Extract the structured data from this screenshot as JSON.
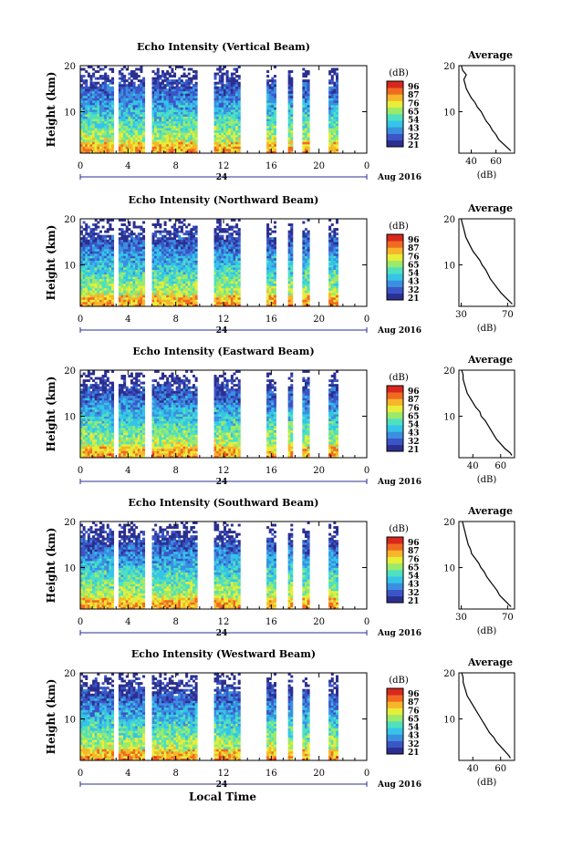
{
  "x_axis_label": "Local Time",
  "date_label": "Aug 2016",
  "day_label": "24",
  "y_label": "Height (km)",
  "x_ticks": [
    "0",
    "4",
    "8",
    "12",
    "16",
    "20",
    "0"
  ],
  "y_ticks": [
    "20",
    "10"
  ],
  "colorbar": {
    "unit": "(dB)",
    "ticks": [
      "96",
      "87",
      "76",
      "65",
      "54",
      "43",
      "32",
      "21"
    ],
    "colors": [
      "#2b2f8f",
      "#3b55c7",
      "#3a8fe0",
      "#35c4e8",
      "#4fe0c0",
      "#9bea6a",
      "#e6ee3a",
      "#f7b52a",
      "#f06a22",
      "#d8281e"
    ]
  },
  "profile": {
    "title": "Average",
    "xlabel": "(dB)"
  },
  "chart_data": [
    {
      "type": "heatmap",
      "title": "Echo Intensity (Vertical Beam)",
      "xlabel": "Local Time",
      "ylabel": "Height (km)",
      "xlim": [
        0,
        24
      ],
      "ylim": [
        1,
        20
      ],
      "data_gaps_hours": [
        [
          2.9,
          3.3
        ],
        [
          5.4,
          6.0
        ],
        [
          9.8,
          11.2
        ],
        [
          13.4,
          15.6
        ],
        [
          16.4,
          17.5
        ],
        [
          17.9,
          18.7
        ],
        [
          19.2,
          20.9
        ],
        [
          21.6,
          24
        ]
      ],
      "colorbar_ticks": [
        96,
        87,
        76,
        65,
        54,
        43,
        32,
        21
      ],
      "profile": {
        "type": "line",
        "title": "Average",
        "xlabel": "(dB)",
        "xticks": [
          "40",
          "60"
        ],
        "xlim": [
          30,
          75
        ],
        "ylim": [
          1,
          20
        ],
        "height_km": [
          1.5,
          2,
          3,
          4,
          5,
          6,
          7,
          8,
          9,
          10,
          11,
          12,
          13,
          14,
          15,
          16,
          17,
          18,
          19,
          20
        ],
        "intensity_db": [
          72,
          70,
          66,
          62,
          60,
          57,
          55,
          52,
          50,
          48,
          45,
          43,
          40,
          38,
          36,
          35,
          34,
          36,
          33,
          32
        ]
      }
    },
    {
      "type": "heatmap",
      "title": "Echo Intensity (Northward Beam)",
      "xlabel": "Local Time",
      "ylabel": "Height (km)",
      "xlim": [
        0,
        24
      ],
      "ylim": [
        1,
        20
      ],
      "data_gaps_hours": [
        [
          2.9,
          3.3
        ],
        [
          5.4,
          6.0
        ],
        [
          9.8,
          11.2
        ],
        [
          13.4,
          15.6
        ],
        [
          16.4,
          17.5
        ],
        [
          17.9,
          18.7
        ],
        [
          19.2,
          20.9
        ],
        [
          21.6,
          24
        ]
      ],
      "colorbar_ticks": [
        96,
        87,
        76,
        65,
        54,
        43,
        32,
        21
      ],
      "profile": {
        "type": "line",
        "title": "Average",
        "xlabel": "(dB)",
        "xticks": [
          "30",
          "70"
        ],
        "xlim": [
          28,
          76
        ],
        "ylim": [
          1,
          20
        ],
        "height_km": [
          1.5,
          2,
          3,
          4,
          5,
          6,
          7,
          8,
          9,
          10,
          11,
          12,
          13,
          14,
          15,
          16,
          17,
          18,
          19,
          20
        ],
        "intensity_db": [
          74,
          72,
          68,
          64,
          61,
          58,
          55,
          53,
          51,
          48,
          46,
          43,
          40,
          38,
          36,
          34,
          33,
          32,
          31,
          30
        ]
      }
    },
    {
      "type": "heatmap",
      "title": "Echo Intensity (Eastward Beam)",
      "xlabel": "Local Time",
      "ylabel": "Height (km)",
      "xlim": [
        0,
        24
      ],
      "ylim": [
        1,
        20
      ],
      "data_gaps_hours": [
        [
          2.9,
          3.3
        ],
        [
          5.4,
          6.0
        ],
        [
          9.8,
          11.2
        ],
        [
          13.4,
          15.6
        ],
        [
          16.4,
          17.5
        ],
        [
          17.9,
          18.7
        ],
        [
          19.2,
          20.9
        ],
        [
          21.6,
          24
        ]
      ],
      "colorbar_ticks": [
        96,
        87,
        76,
        65,
        54,
        43,
        32,
        21
      ],
      "profile": {
        "type": "line",
        "title": "Average",
        "xlabel": "(dB)",
        "xticks": [
          "40",
          "60"
        ],
        "xlim": [
          30,
          70
        ],
        "ylim": [
          1,
          20
        ],
        "height_km": [
          1.5,
          2,
          3,
          4,
          5,
          6,
          7,
          8,
          9,
          10,
          11,
          12,
          13,
          14,
          15,
          16,
          17,
          18,
          19,
          20
        ],
        "intensity_db": [
          68,
          67,
          63,
          60,
          57,
          55,
          53,
          51,
          49,
          46,
          45,
          42,
          40,
          38,
          36,
          35,
          34,
          33,
          33,
          32
        ]
      }
    },
    {
      "type": "heatmap",
      "title": "Echo Intensity (Southward Beam)",
      "xlabel": "Local Time",
      "ylabel": "Height (km)",
      "xlim": [
        0,
        24
      ],
      "ylim": [
        1,
        20
      ],
      "data_gaps_hours": [
        [
          2.9,
          3.3
        ],
        [
          5.4,
          6.0
        ],
        [
          9.8,
          11.2
        ],
        [
          13.4,
          15.6
        ],
        [
          16.4,
          17.5
        ],
        [
          17.9,
          18.7
        ],
        [
          19.2,
          20.9
        ],
        [
          21.6,
          24
        ]
      ],
      "colorbar_ticks": [
        96,
        87,
        76,
        65,
        54,
        43,
        32,
        21
      ],
      "profile": {
        "type": "line",
        "title": "Average",
        "xlabel": "(dB)",
        "xticks": [
          "30",
          "70"
        ],
        "xlim": [
          28,
          76
        ],
        "ylim": [
          1,
          20
        ],
        "height_km": [
          1.5,
          2,
          3,
          4,
          5,
          6,
          7,
          8,
          9,
          10,
          11,
          12,
          13,
          14,
          15,
          16,
          17,
          18,
          19,
          20
        ],
        "intensity_db": [
          73,
          71,
          67,
          63,
          61,
          58,
          55,
          52,
          50,
          47,
          45,
          42,
          39,
          38,
          36,
          35,
          34,
          33,
          32,
          31
        ]
      }
    },
    {
      "type": "heatmap",
      "title": "Echo Intensity (Westward Beam)",
      "xlabel": "Local Time",
      "ylabel": "Height (km)",
      "xlim": [
        0,
        24
      ],
      "ylim": [
        1,
        20
      ],
      "data_gaps_hours": [
        [
          2.9,
          3.3
        ],
        [
          5.4,
          6.0
        ],
        [
          9.8,
          11.2
        ],
        [
          13.4,
          15.6
        ],
        [
          16.4,
          17.5
        ],
        [
          17.9,
          18.7
        ],
        [
          19.2,
          20.9
        ],
        [
          21.6,
          24
        ]
      ],
      "colorbar_ticks": [
        96,
        87,
        76,
        65,
        54,
        43,
        32,
        21
      ],
      "profile": {
        "type": "line",
        "title": "Average",
        "xlabel": "(dB)",
        "xticks": [
          "40",
          "60"
        ],
        "xlim": [
          30,
          70
        ],
        "ylim": [
          1,
          20
        ],
        "height_km": [
          1.5,
          2,
          3,
          4,
          5,
          6,
          7,
          8,
          9,
          10,
          11,
          12,
          13,
          14,
          15,
          16,
          17,
          18,
          19,
          20
        ],
        "intensity_db": [
          67,
          66,
          63,
          60,
          57,
          55,
          52,
          50,
          48,
          46,
          44,
          42,
          40,
          38,
          36,
          35,
          34,
          33,
          33,
          32
        ]
      }
    }
  ]
}
